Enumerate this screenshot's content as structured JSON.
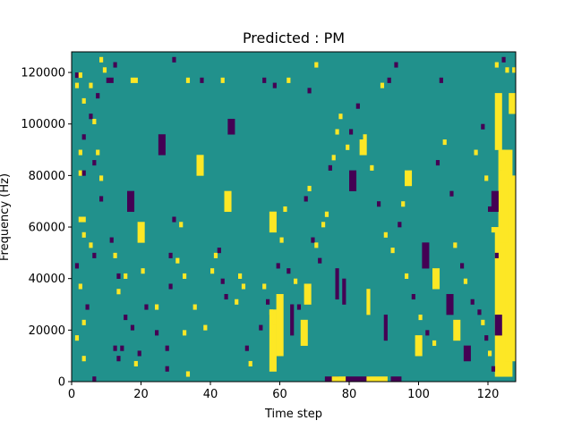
{
  "chart_data": {
    "type": "heatmap",
    "title": "Predicted : PM",
    "xlabel": "Time step",
    "ylabel": "Frequency (Hz)",
    "xlim": [
      0,
      128
    ],
    "ylim": [
      0,
      128000
    ],
    "x_ticks": [
      0,
      20,
      40,
      60,
      80,
      100,
      120
    ],
    "y_ticks": [
      0,
      20000,
      40000,
      60000,
      80000,
      100000,
      120000
    ],
    "x_tick_labels": [
      "0",
      "20",
      "40",
      "60",
      "80",
      "100",
      "120"
    ],
    "y_tick_labels": [
      "0",
      "20000",
      "40000",
      "60000",
      "80000",
      "100000",
      "120000"
    ],
    "grid": false,
    "colormap": "viridis",
    "value_levels": [
      -1,
      0,
      1
    ],
    "level_colors": {
      "-1": "#440154",
      "0": "#21918c",
      "1": "#fde725"
    },
    "background_value": 0,
    "rows": 64,
    "cols": 128,
    "cell_freq_hz": 2000,
    "marked_cells": [
      {
        "x": 1,
        "y": 59,
        "v": -1
      },
      {
        "x": 1,
        "y": 57,
        "v": 1
      },
      {
        "x": 2,
        "y": 59,
        "v": 1
      },
      {
        "x": 3,
        "y": 47,
        "v": -1
      },
      {
        "x": 3,
        "y": 54,
        "v": 1
      },
      {
        "x": 5,
        "y": 57,
        "v": 1
      },
      {
        "x": 5,
        "y": 51,
        "v": -1
      },
      {
        "x": 6,
        "y": 42,
        "v": -1
      },
      {
        "x": 7,
        "y": 55,
        "v": -1
      },
      {
        "x": 8,
        "y": 62,
        "v": 1
      },
      {
        "x": 8,
        "y": 39,
        "v": 1
      },
      {
        "x": 9,
        "y": 60,
        "v": 1
      },
      {
        "x": 10,
        "y": 58,
        "v": -1
      },
      {
        "x": 11,
        "y": 58,
        "v": -1
      },
      {
        "x": 12,
        "y": 61,
        "v": -1
      },
      {
        "x": 17,
        "y": 58,
        "v": 1
      },
      {
        "x": 18,
        "y": 58,
        "v": 1
      },
      {
        "x": 29,
        "y": 62,
        "v": -1
      },
      {
        "x": 33,
        "y": 58,
        "v": 1
      },
      {
        "x": 37,
        "y": 58,
        "v": -1
      },
      {
        "x": 43,
        "y": 58,
        "v": 1
      },
      {
        "x": 55,
        "y": 58,
        "v": -1
      },
      {
        "x": 58,
        "y": 57,
        "v": -1
      },
      {
        "x": 62,
        "y": 58,
        "v": 1
      },
      {
        "x": 70,
        "y": 61,
        "v": 1
      },
      {
        "x": 68,
        "y": 56,
        "v": -1
      },
      {
        "x": 89,
        "y": 57,
        "v": 1
      },
      {
        "x": 91,
        "y": 58,
        "v": -1
      },
      {
        "x": 93,
        "y": 61,
        "v": -1
      },
      {
        "x": 106,
        "y": 58,
        "v": -1
      },
      {
        "x": 122,
        "y": 61,
        "v": 1
      },
      {
        "x": 124,
        "y": 62,
        "v": -1
      },
      {
        "x": 125,
        "y": 60,
        "v": 1
      },
      {
        "x": 127,
        "y": 60,
        "v": 1
      },
      {
        "x": 6,
        "y": 50,
        "v": 1
      },
      {
        "x": 2,
        "y": 44,
        "v": 1
      },
      {
        "x": 7,
        "y": 44,
        "v": 1
      },
      {
        "x": 2,
        "y": 40,
        "v": 1
      },
      {
        "x": 3,
        "y": 40,
        "v": -1
      },
      {
        "x": 8,
        "y": 35,
        "v": -1
      },
      {
        "x": 2,
        "y": 31,
        "v": 1
      },
      {
        "x": 3,
        "y": 31,
        "v": 1
      },
      {
        "x": 3,
        "y": 28,
        "v": 1
      },
      {
        "x": 5,
        "y": 26,
        "v": 1
      },
      {
        "x": 6,
        "y": 24,
        "v": -1
      },
      {
        "x": 1,
        "y": 22,
        "v": -1
      },
      {
        "x": 2,
        "y": 18,
        "v": 1
      },
      {
        "x": 4,
        "y": 14,
        "v": -1
      },
      {
        "x": 3,
        "y": 11,
        "v": 1
      },
      {
        "x": 1,
        "y": 8,
        "v": 1
      },
      {
        "x": 3,
        "y": 4,
        "v": 1
      },
      {
        "x": 6,
        "y": 0,
        "v": -1
      },
      {
        "x": 11,
        "y": 27,
        "v": -1
      },
      {
        "x": 12,
        "y": 24,
        "v": 1
      },
      {
        "x": 13,
        "y": 20,
        "v": -1
      },
      {
        "x": 12,
        "y": 6,
        "v": -1
      },
      {
        "x": 13,
        "y": 4,
        "v": -1
      },
      {
        "x": 14,
        "y": 6,
        "v": -1
      },
      {
        "x": 17,
        "y": 10,
        "v": -1
      },
      {
        "x": 13,
        "y": 17,
        "v": 1
      },
      {
        "x": 15,
        "y": 12,
        "v": -1
      },
      {
        "x": 15,
        "y": 20,
        "v": 1
      },
      {
        "x": 18,
        "y": 3,
        "v": 1
      },
      {
        "x": 19,
        "y": 5,
        "v": -1
      },
      {
        "x": 20,
        "y": 21,
        "v": 1
      },
      {
        "x": 21,
        "y": 14,
        "v": -1
      },
      {
        "x": 24,
        "y": 14,
        "v": 1
      },
      {
        "x": 24,
        "y": 9,
        "v": -1
      },
      {
        "x": 27,
        "y": 2,
        "v": -1
      },
      {
        "x": 27,
        "y": 6,
        "v": -1
      },
      {
        "x": 28,
        "y": 18,
        "v": -1
      },
      {
        "x": 28,
        "y": 24,
        "v": -1
      },
      {
        "x": 29,
        "y": 31,
        "v": -1
      },
      {
        "x": 30,
        "y": 23,
        "v": 1
      },
      {
        "x": 31,
        "y": 30,
        "v": 1
      },
      {
        "x": 32,
        "y": 20,
        "v": 1
      },
      {
        "x": 32,
        "y": 9,
        "v": 1
      },
      {
        "x": 33,
        "y": 1,
        "v": 1
      },
      {
        "x": 35,
        "y": 14,
        "v": 1
      },
      {
        "x": 38,
        "y": 10,
        "v": 1
      },
      {
        "x": 40,
        "y": 21,
        "v": 1
      },
      {
        "x": 41,
        "y": 24,
        "v": 1
      },
      {
        "x": 42,
        "y": 25,
        "v": -1
      },
      {
        "x": 43,
        "y": 19,
        "v": -1
      },
      {
        "x": 44,
        "y": 16,
        "v": -1
      },
      {
        "x": 47,
        "y": 15,
        "v": 1
      },
      {
        "x": 48,
        "y": 20,
        "v": 1
      },
      {
        "x": 49,
        "y": 18,
        "v": 1
      },
      {
        "x": 50,
        "y": 6,
        "v": -1
      },
      {
        "x": 51,
        "y": 3,
        "v": 1
      },
      {
        "x": 54,
        "y": 10,
        "v": -1
      },
      {
        "x": 55,
        "y": 18,
        "v": 1
      },
      {
        "x": 56,
        "y": 15,
        "v": -1
      },
      {
        "x": 57,
        "y": 13,
        "v": 1
      },
      {
        "x": 58,
        "y": 11,
        "v": 1
      },
      {
        "x": 59,
        "y": 22,
        "v": -1
      },
      {
        "x": 60,
        "y": 27,
        "v": 1
      },
      {
        "x": 61,
        "y": 33,
        "v": 1
      },
      {
        "x": 62,
        "y": 21,
        "v": -1
      },
      {
        "x": 64,
        "y": 19,
        "v": 1
      },
      {
        "x": 65,
        "y": 14,
        "v": -1
      },
      {
        "x": 67,
        "y": 35,
        "v": -1
      },
      {
        "x": 68,
        "y": 37,
        "v": 1
      },
      {
        "x": 69,
        "y": 27,
        "v": -1
      },
      {
        "x": 70,
        "y": 26,
        "v": 1
      },
      {
        "x": 71,
        "y": 23,
        "v": -1
      },
      {
        "x": 72,
        "y": 30,
        "v": 1
      },
      {
        "x": 73,
        "y": 32,
        "v": 1
      },
      {
        "x": 74,
        "y": 41,
        "v": -1
      },
      {
        "x": 75,
        "y": 43,
        "v": 1
      },
      {
        "x": 76,
        "y": 48,
        "v": 1
      },
      {
        "x": 77,
        "y": 51,
        "v": 1
      },
      {
        "x": 79,
        "y": 45,
        "v": 1
      },
      {
        "x": 80,
        "y": 48,
        "v": -1
      },
      {
        "x": 82,
        "y": 53,
        "v": -1
      },
      {
        "x": 84,
        "y": 47,
        "v": 1
      },
      {
        "x": 86,
        "y": 41,
        "v": 1
      },
      {
        "x": 88,
        "y": 34,
        "v": -1
      },
      {
        "x": 90,
        "y": 28,
        "v": 1
      },
      {
        "x": 92,
        "y": 25,
        "v": 1
      },
      {
        "x": 94,
        "y": 30,
        "v": -1
      },
      {
        "x": 95,
        "y": 34,
        "v": 1
      },
      {
        "x": 96,
        "y": 20,
        "v": 1
      },
      {
        "x": 98,
        "y": 16,
        "v": -1
      },
      {
        "x": 100,
        "y": 12,
        "v": 1
      },
      {
        "x": 102,
        "y": 9,
        "v": -1
      },
      {
        "x": 104,
        "y": 7,
        "v": 1
      },
      {
        "x": 105,
        "y": 42,
        "v": -1
      },
      {
        "x": 107,
        "y": 46,
        "v": 1
      },
      {
        "x": 109,
        "y": 36,
        "v": -1
      },
      {
        "x": 110,
        "y": 26,
        "v": 1
      },
      {
        "x": 112,
        "y": 22,
        "v": -1
      },
      {
        "x": 113,
        "y": 19,
        "v": 1
      },
      {
        "x": 115,
        "y": 15,
        "v": -1
      },
      {
        "x": 116,
        "y": 44,
        "v": 1
      },
      {
        "x": 118,
        "y": 49,
        "v": -1
      },
      {
        "x": 119,
        "y": 39,
        "v": 1
      },
      {
        "x": 120,
        "y": 33,
        "v": -1
      },
      {
        "x": 121,
        "y": 29,
        "v": 1
      },
      {
        "x": 122,
        "y": 24,
        "v": -1
      },
      {
        "x": 119,
        "y": 8,
        "v": -1
      },
      {
        "x": 120,
        "y": 5,
        "v": 1
      },
      {
        "x": 121,
        "y": 2,
        "v": -1
      },
      {
        "x": 118,
        "y": 11,
        "v": 1
      },
      {
        "x": 117,
        "y": 13,
        "v": -1
      }
    ],
    "marked_runs": [
      {
        "x0": 57,
        "x1": 59,
        "y0": 2,
        "y1": 14,
        "v": 1
      },
      {
        "x0": 59,
        "x1": 61,
        "y0": 5,
        "y1": 17,
        "v": 1
      },
      {
        "x0": 57,
        "x1": 59,
        "y0": 29,
        "y1": 33,
        "v": 1
      },
      {
        "x0": 66,
        "x1": 68,
        "y0": 7,
        "y1": 12,
        "v": 1
      },
      {
        "x0": 67,
        "x1": 69,
        "y0": 15,
        "y1": 19,
        "v": 1
      },
      {
        "x0": 63,
        "x1": 64,
        "y0": 9,
        "y1": 15,
        "v": -1
      },
      {
        "x0": 73,
        "x1": 77,
        "y0": 0,
        "y1": 1,
        "v": -1
      },
      {
        "x0": 75,
        "x1": 79,
        "y0": 0,
        "y1": 1,
        "v": 1
      },
      {
        "x0": 79,
        "x1": 86,
        "y0": 0,
        "y1": 1,
        "v": -1
      },
      {
        "x0": 85,
        "x1": 91,
        "y0": 0,
        "y1": 1,
        "v": 1
      },
      {
        "x0": 92,
        "x1": 95,
        "y0": 0,
        "y1": 1,
        "v": -1
      },
      {
        "x0": 76,
        "x1": 77,
        "y0": 16,
        "y1": 22,
        "v": -1
      },
      {
        "x0": 78,
        "x1": 79,
        "y0": 15,
        "y1": 20,
        "v": -1
      },
      {
        "x0": 85,
        "x1": 86,
        "y0": 13,
        "y1": 18,
        "v": 1
      },
      {
        "x0": 90,
        "x1": 91,
        "y0": 8,
        "y1": 13,
        "v": -1
      },
      {
        "x0": 122,
        "x1": 124,
        "y0": 1,
        "y1": 30,
        "v": 1
      },
      {
        "x0": 124,
        "x1": 127,
        "y0": 1,
        "y1": 45,
        "v": 1
      },
      {
        "x0": 125,
        "x1": 128,
        "y0": 4,
        "y1": 40,
        "v": 1
      },
      {
        "x0": 123,
        "x1": 126,
        "y0": 27,
        "y1": 41,
        "v": 1
      },
      {
        "x0": 123,
        "x1": 125,
        "y0": 41,
        "y1": 45,
        "v": 1
      },
      {
        "x0": 122,
        "x1": 124,
        "y0": 45,
        "y1": 56,
        "v": 1
      },
      {
        "x0": 126,
        "x1": 128,
        "y0": 52,
        "y1": 56,
        "v": 1
      },
      {
        "x0": 121,
        "x1": 123,
        "y0": 33,
        "y1": 37,
        "v": -1
      },
      {
        "x0": 122,
        "x1": 124,
        "y0": 9,
        "y1": 13,
        "v": -1
      },
      {
        "x0": 126,
        "x1": 128,
        "y0": 10,
        "y1": 15,
        "v": 1
      },
      {
        "x0": 110,
        "x1": 112,
        "y0": 8,
        "y1": 12,
        "v": 1
      },
      {
        "x0": 113,
        "x1": 115,
        "y0": 4,
        "y1": 7,
        "v": -1
      },
      {
        "x0": 99,
        "x1": 101,
        "y0": 5,
        "y1": 9,
        "v": 1
      },
      {
        "x0": 101,
        "x1": 103,
        "y0": 22,
        "y1": 27,
        "v": -1
      },
      {
        "x0": 104,
        "x1": 106,
        "y0": 18,
        "y1": 22,
        "v": 1
      },
      {
        "x0": 108,
        "x1": 110,
        "y0": 13,
        "y1": 17,
        "v": -1
      },
      {
        "x0": 96,
        "x1": 98,
        "y0": 38,
        "y1": 41,
        "v": 1
      },
      {
        "x0": 80,
        "x1": 82,
        "y0": 37,
        "y1": 41,
        "v": -1
      },
      {
        "x0": 83,
        "x1": 85,
        "y0": 44,
        "y1": 47,
        "v": 1
      },
      {
        "x0": 44,
        "x1": 46,
        "y0": 33,
        "y1": 37,
        "v": 1
      },
      {
        "x0": 45,
        "x1": 47,
        "y0": 48,
        "y1": 51,
        "v": -1
      },
      {
        "x0": 36,
        "x1": 38,
        "y0": 40,
        "y1": 44,
        "v": 1
      },
      {
        "x0": 25,
        "x1": 27,
        "y0": 44,
        "y1": 48,
        "v": -1
      },
      {
        "x0": 19,
        "x1": 21,
        "y0": 27,
        "y1": 31,
        "v": 1
      },
      {
        "x0": 16,
        "x1": 18,
        "y0": 33,
        "y1": 37,
        "v": -1
      }
    ]
  }
}
